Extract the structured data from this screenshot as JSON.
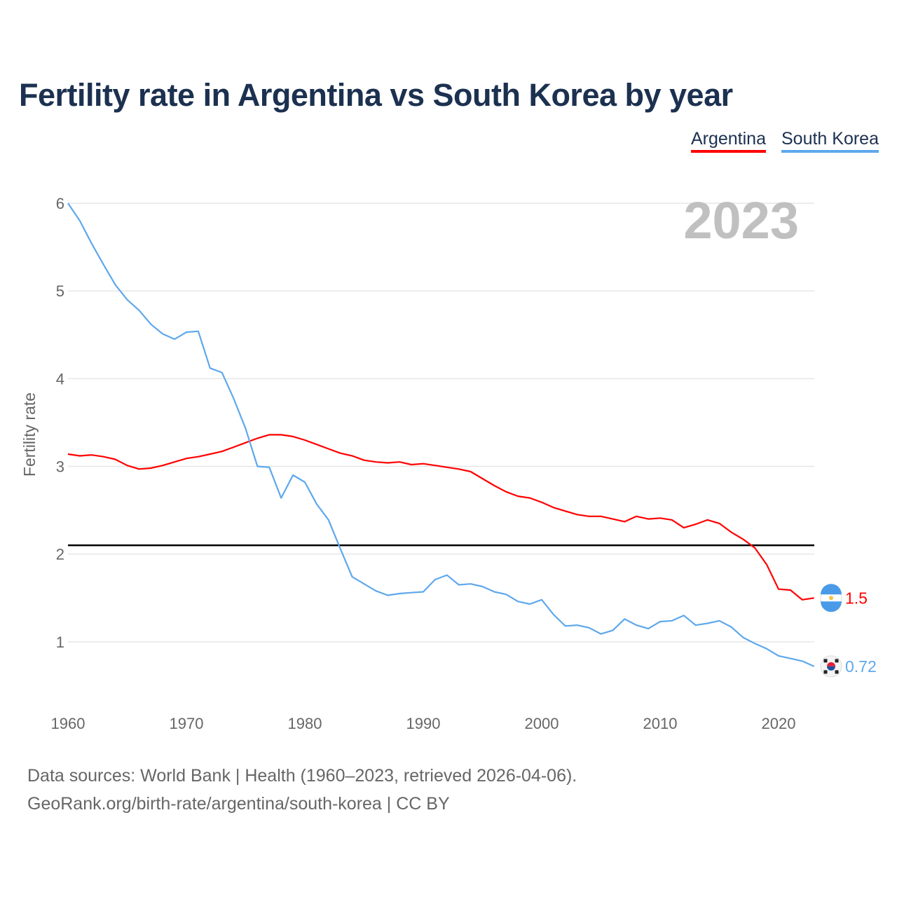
{
  "title": "Fertility rate in Argentina vs South Korea by year",
  "footer": {
    "line1": "Data sources: World Bank | Health (1960–2023, retrieved 2026-04-06).",
    "line2": "GeoRank.org/birth-rate/argentina/south-korea | CC BY"
  },
  "chart_data": {
    "type": "line",
    "title": "Fertility rate in Argentina vs South Korea by year",
    "xlabel": "",
    "ylabel": "Fertility rate",
    "year_label": "2023",
    "xlim": [
      1960,
      2023
    ],
    "ylim": [
      0,
      6
    ],
    "xticks": [
      "1960",
      "1970",
      "1980",
      "1990",
      "2000",
      "2010",
      "2020"
    ],
    "yticks": [
      "1",
      "2",
      "3",
      "4",
      "5",
      "6"
    ],
    "grid": true,
    "legend_placement": "top-right",
    "reference_line": 2.1,
    "x": [
      1960,
      1961,
      1962,
      1963,
      1964,
      1965,
      1966,
      1967,
      1968,
      1969,
      1970,
      1971,
      1972,
      1973,
      1974,
      1975,
      1976,
      1977,
      1978,
      1979,
      1980,
      1981,
      1982,
      1983,
      1984,
      1985,
      1986,
      1987,
      1988,
      1989,
      1990,
      1991,
      1992,
      1993,
      1994,
      1995,
      1996,
      1997,
      1998,
      1999,
      2000,
      2001,
      2002,
      2003,
      2004,
      2005,
      2006,
      2007,
      2008,
      2009,
      2010,
      2011,
      2012,
      2013,
      2014,
      2015,
      2016,
      2017,
      2018,
      2019,
      2020,
      2021,
      2022,
      2023
    ],
    "series": [
      {
        "name": "Argentina",
        "color": "#ff0000",
        "end_label": "1.5",
        "flag": "argentina-flag",
        "values": [
          3.14,
          3.12,
          3.13,
          3.11,
          3.08,
          3.01,
          2.97,
          2.98,
          3.01,
          3.05,
          3.09,
          3.11,
          3.14,
          3.17,
          3.22,
          3.27,
          3.32,
          3.36,
          3.36,
          3.34,
          3.3,
          3.25,
          3.2,
          3.15,
          3.12,
          3.07,
          3.05,
          3.04,
          3.05,
          3.02,
          3.03,
          3.01,
          2.99,
          2.97,
          2.94,
          2.86,
          2.78,
          2.71,
          2.66,
          2.64,
          2.59,
          2.53,
          2.49,
          2.45,
          2.43,
          2.43,
          2.4,
          2.37,
          2.43,
          2.4,
          2.41,
          2.39,
          2.3,
          2.34,
          2.39,
          2.35,
          2.25,
          2.17,
          2.07,
          1.88,
          1.6,
          1.59,
          1.48,
          1.5
        ]
      },
      {
        "name": "South Korea",
        "color": "#5ea8ec",
        "end_label": "0.72",
        "flag": "south-korea-flag",
        "values": [
          6.0,
          5.8,
          5.54,
          5.3,
          5.07,
          4.9,
          4.78,
          4.62,
          4.51,
          4.45,
          4.53,
          4.54,
          4.12,
          4.07,
          3.77,
          3.43,
          3.0,
          2.99,
          2.64,
          2.9,
          2.82,
          2.57,
          2.39,
          2.06,
          1.74,
          1.66,
          1.58,
          1.53,
          1.55,
          1.56,
          1.57,
          1.71,
          1.76,
          1.65,
          1.66,
          1.63,
          1.57,
          1.54,
          1.46,
          1.43,
          1.48,
          1.31,
          1.18,
          1.19,
          1.16,
          1.09,
          1.13,
          1.26,
          1.19,
          1.15,
          1.23,
          1.24,
          1.3,
          1.19,
          1.21,
          1.24,
          1.17,
          1.05,
          0.98,
          0.92,
          0.84,
          0.81,
          0.78,
          0.72
        ]
      }
    ]
  }
}
